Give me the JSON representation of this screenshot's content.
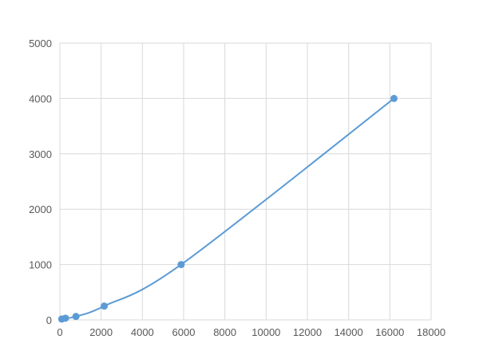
{
  "chart_data": {
    "type": "scatter",
    "title": "",
    "xlabel": "",
    "ylabel": "",
    "xlim": [
      0,
      18000
    ],
    "ylim": [
      0,
      5000
    ],
    "xticks": [
      0,
      2000,
      4000,
      6000,
      8000,
      10000,
      12000,
      14000,
      16000,
      18000
    ],
    "yticks": [
      0,
      1000,
      2000,
      3000,
      4000,
      5000
    ],
    "grid": true,
    "line": "smooth",
    "color": "#5b9bd5",
    "series": [
      {
        "x": [
          90,
          270,
          780,
          2150,
          5880,
          16200
        ],
        "y": [
          15.6,
          31.25,
          62.5,
          250,
          1000,
          4000
        ]
      }
    ]
  }
}
